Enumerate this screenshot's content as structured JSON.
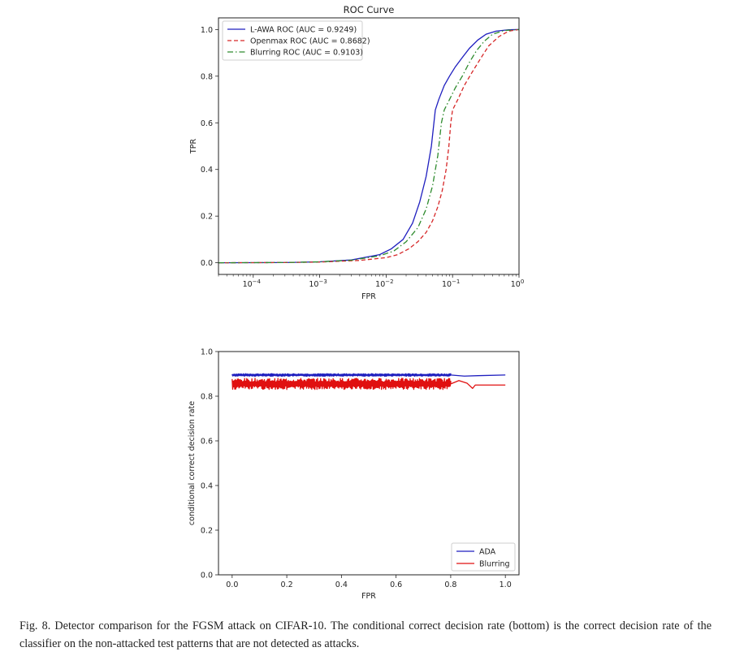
{
  "chart_data": [
    {
      "type": "line",
      "title": "ROC Curve",
      "xlabel": "FPR",
      "ylabel": "TPR",
      "xscale": "log",
      "xlim": [
        3e-05,
        1.0
      ],
      "ylim": [
        -0.05,
        1.05
      ],
      "xticks": [
        {
          "value": 0.0001,
          "base": "10",
          "exp": "−4"
        },
        {
          "value": 0.001,
          "base": "10",
          "exp": "−3"
        },
        {
          "value": 0.01,
          "base": "10",
          "exp": "−2"
        },
        {
          "value": 0.1,
          "base": "10",
          "exp": "−1"
        },
        {
          "value": 1.0,
          "base": "10",
          "exp": "0"
        }
      ],
      "yticks": [
        "0.0",
        "0.2",
        "0.4",
        "0.6",
        "0.8",
        "1.0"
      ],
      "legend_position": "top-left",
      "series": [
        {
          "name": "L-AWA ROC (AUC = 0.9249)",
          "color": "#1f1fbf",
          "dash": "solid",
          "x": [
            3e-05,
            0.0003,
            0.001,
            0.003,
            0.008,
            0.012,
            0.018,
            0.025,
            0.032,
            0.04,
            0.048,
            0.055,
            0.062,
            0.075,
            0.09,
            0.11,
            0.14,
            0.18,
            0.24,
            0.32,
            0.45,
            0.7,
            1.0
          ],
          "y": [
            0.0,
            0.001,
            0.004,
            0.012,
            0.035,
            0.06,
            0.1,
            0.17,
            0.26,
            0.37,
            0.5,
            0.655,
            0.7,
            0.76,
            0.8,
            0.84,
            0.88,
            0.92,
            0.955,
            0.98,
            0.993,
            0.999,
            1.0
          ]
        },
        {
          "name": "Openmax ROC (AUC = 0.8682)",
          "color": "#d62728",
          "dash": "dashed",
          "x": [
            3e-05,
            0.0003,
            0.001,
            0.004,
            0.01,
            0.015,
            0.022,
            0.03,
            0.04,
            0.05,
            0.06,
            0.07,
            0.08,
            0.088,
            0.094,
            0.1,
            0.12,
            0.15,
            0.2,
            0.27,
            0.35,
            0.5,
            0.7,
            1.0
          ],
          "y": [
            0.0,
            0.001,
            0.003,
            0.01,
            0.022,
            0.035,
            0.06,
            0.09,
            0.13,
            0.18,
            0.24,
            0.31,
            0.4,
            0.5,
            0.6,
            0.655,
            0.7,
            0.76,
            0.82,
            0.88,
            0.93,
            0.97,
            0.993,
            1.0
          ]
        },
        {
          "name": "Blurring ROC (AUC = 0.9103)",
          "color": "#2e8b2e",
          "dash": "dashdot",
          "x": [
            3e-05,
            0.0003,
            0.001,
            0.003,
            0.008,
            0.013,
            0.02,
            0.03,
            0.04,
            0.05,
            0.06,
            0.068,
            0.075,
            0.09,
            0.11,
            0.14,
            0.18,
            0.23,
            0.3,
            0.4,
            0.6,
            1.0
          ],
          "y": [
            0.0,
            0.001,
            0.004,
            0.011,
            0.03,
            0.05,
            0.09,
            0.15,
            0.23,
            0.33,
            0.46,
            0.6,
            0.655,
            0.7,
            0.75,
            0.8,
            0.86,
            0.91,
            0.95,
            0.98,
            0.996,
            1.0
          ]
        }
      ]
    },
    {
      "type": "line",
      "title": "",
      "xlabel": "FPR",
      "ylabel": "conditional correct decision rate",
      "xlim": [
        -0.05,
        1.05
      ],
      "ylim": [
        0.0,
        1.0
      ],
      "xticks": [
        "0.0",
        "0.2",
        "0.4",
        "0.6",
        "0.8",
        "1.0"
      ],
      "yticks": [
        "0.0",
        "0.2",
        "0.4",
        "0.6",
        "0.8",
        "1.0"
      ],
      "legend_position": "bottom-right",
      "series": [
        {
          "name": "ADA",
          "color": "#1f1fbf",
          "base": 0.895,
          "noise_amplitude": 0.006,
          "noise_until": 0.8,
          "tail_x": [
            0.8,
            0.85,
            0.9,
            1.0
          ],
          "tail_y": [
            0.895,
            0.89,
            0.892,
            0.895
          ]
        },
        {
          "name": "Blurring",
          "color": "#e01010",
          "base": 0.855,
          "noise_amplitude": 0.025,
          "noise_until": 0.8,
          "tail_x": [
            0.8,
            0.83,
            0.86,
            0.88,
            0.89,
            1.0
          ],
          "tail_y": [
            0.855,
            0.87,
            0.858,
            0.835,
            0.85,
            0.85
          ]
        }
      ]
    }
  ],
  "caption": {
    "label": "Fig. 8.",
    "text": "Detector comparison for the FGSM attack on CIFAR-10. The conditional correct decision rate (bottom) is the correct decision rate of the classifier on the non-attacked test patterns that are not detected as attacks."
  }
}
